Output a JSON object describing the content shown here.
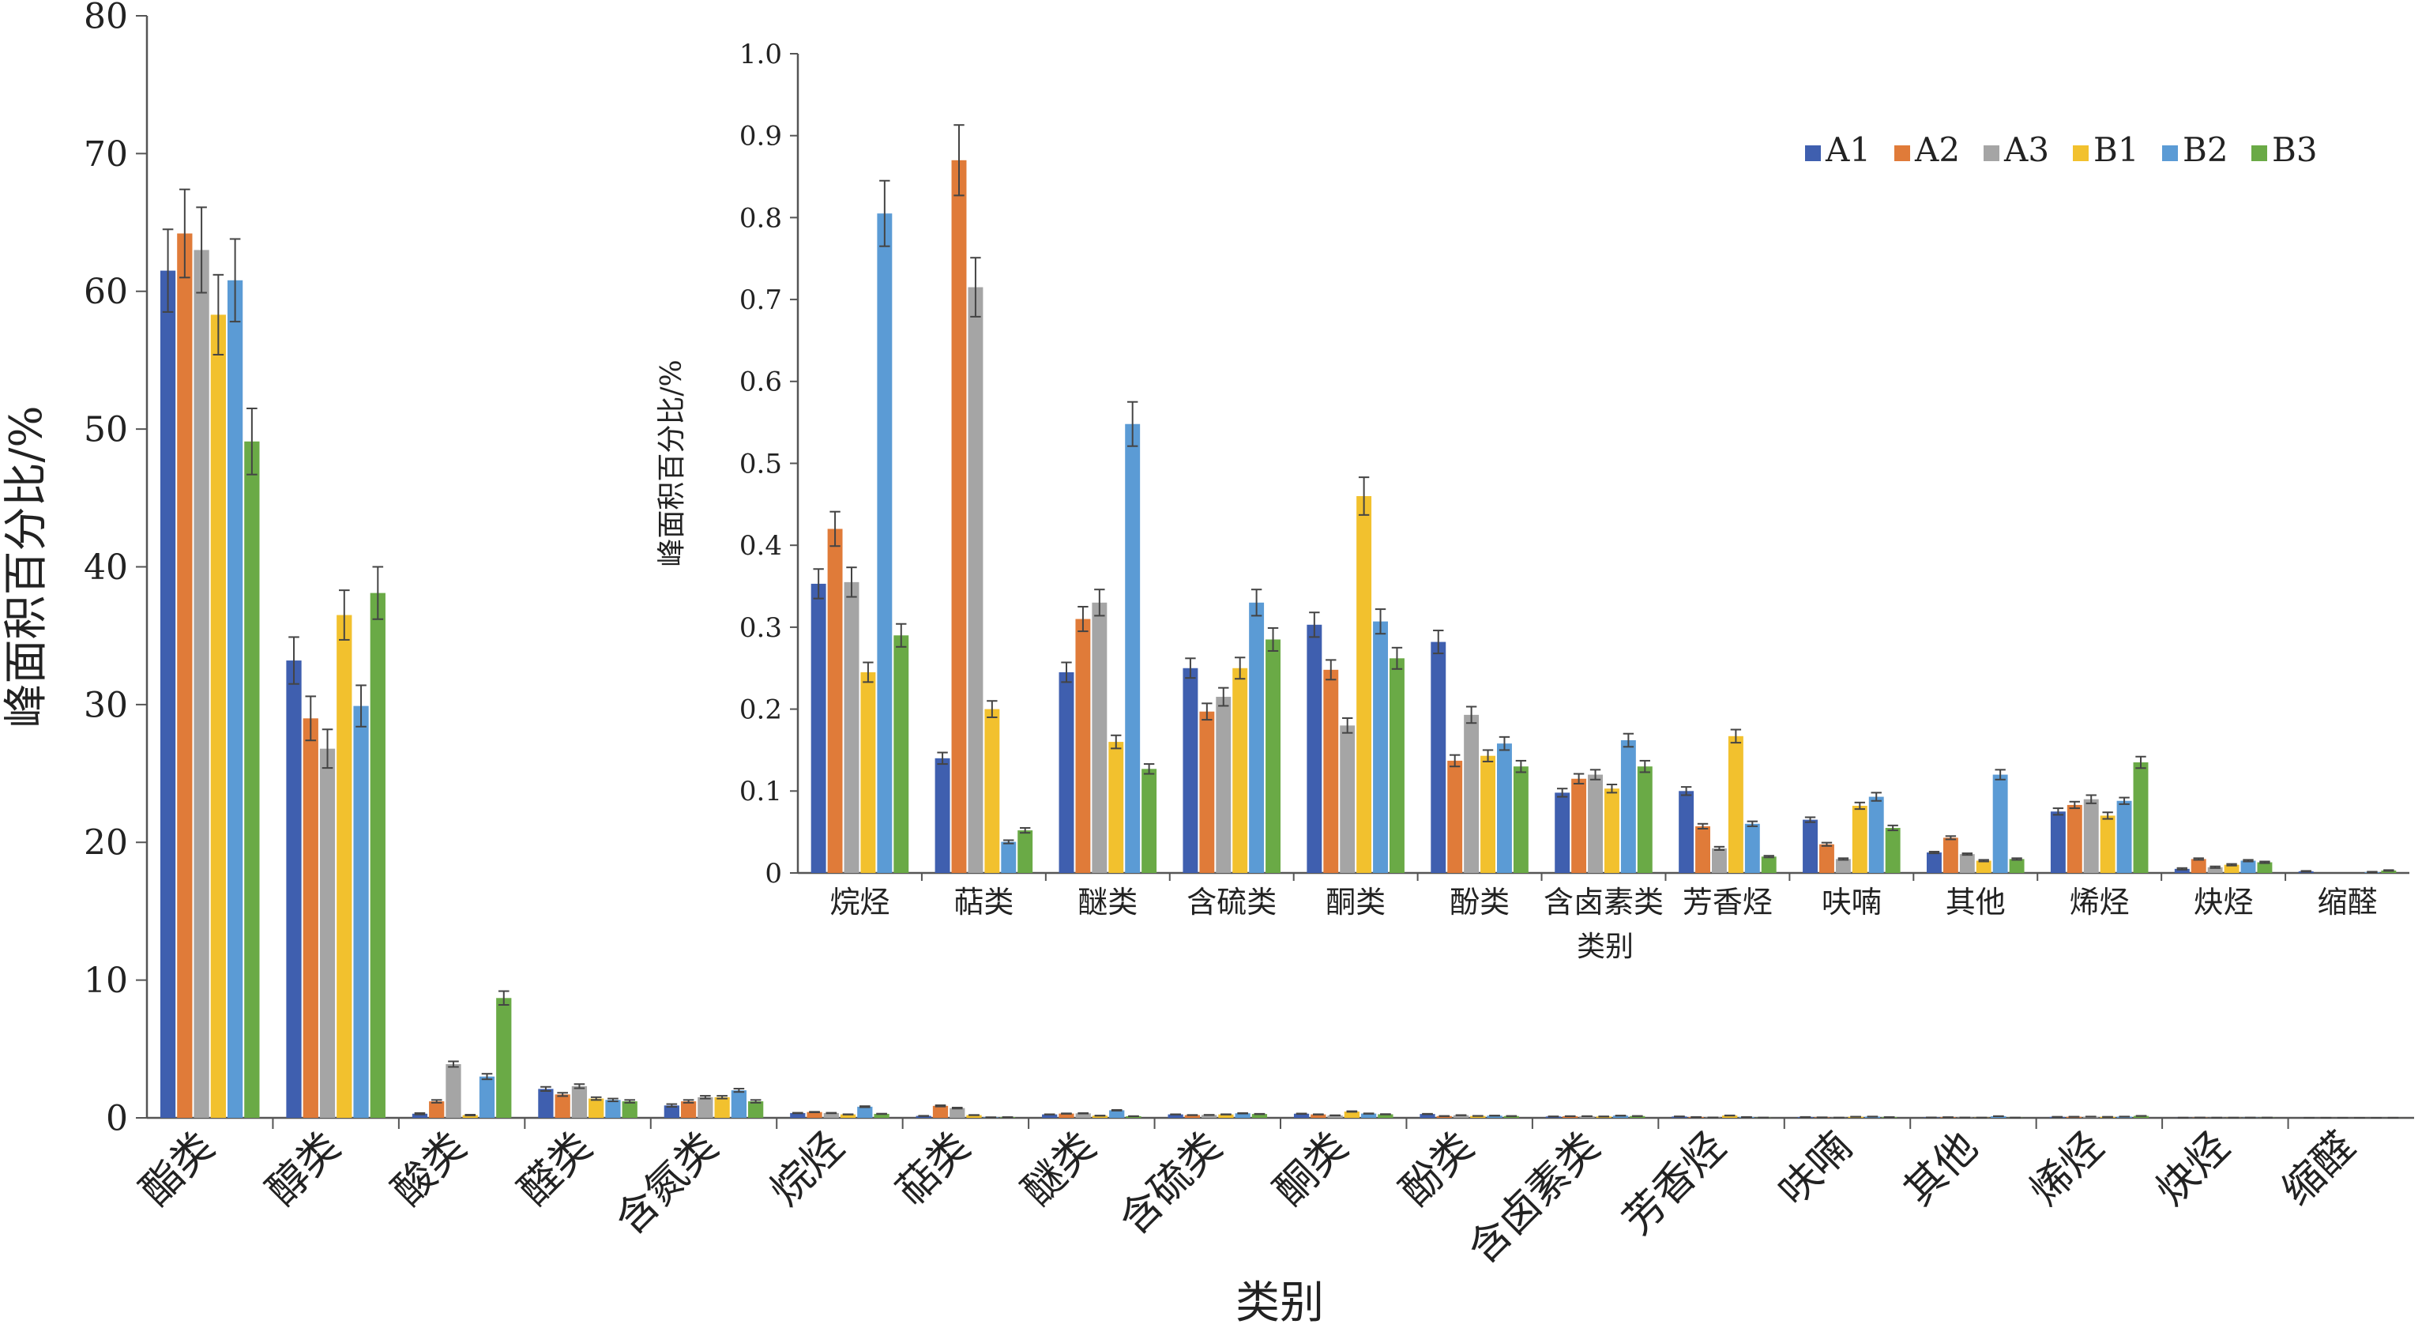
{
  "colors": {
    "A1": "#3f5faf",
    "A2": "#e07b39",
    "A3": "#a5a5a5",
    "B1": "#f2c12e",
    "B2": "#5b9bd5",
    "B3": "#6aaa46",
    "axis": "#555555",
    "error": "#444444"
  },
  "chart_data": [
    {
      "type": "bar",
      "xlabel": "类别",
      "ylabel": "峰面积百分比/%",
      "ylim": [
        0,
        80
      ],
      "yticks": [
        0,
        10,
        20,
        30,
        40,
        50,
        60,
        70,
        80
      ],
      "categories": [
        "酯类",
        "醇类",
        "酸类",
        "醛类",
        "含氮类",
        "烷烃",
        "萜类",
        "醚类",
        "含硫类",
        "酮类",
        "酚类",
        "含卤素类",
        "芳香烃",
        "呋喃",
        "其他",
        "烯烃",
        "炔烃",
        "缩醛"
      ],
      "series": [
        {
          "name": "A1",
          "values": [
            61.5,
            33.2,
            0.3,
            2.1,
            0.9,
            0.35,
            0.14,
            0.25,
            0.25,
            0.3,
            0.28,
            0.1,
            0.1,
            0.06,
            0.03,
            0.07,
            0.01,
            0.002
          ],
          "errors": [
            3.0,
            1.7,
            0.05,
            0.15,
            0.1,
            0.02,
            0.01,
            0.01,
            0.01,
            0.015,
            0.015,
            0.005,
            0.005,
            0.004,
            0.002,
            0.004,
            0.001,
            0.0005
          ]
        },
        {
          "name": "A2",
          "values": [
            64.2,
            29.0,
            1.2,
            1.7,
            1.2,
            0.42,
            0.87,
            0.31,
            0.2,
            0.25,
            0.13,
            0.12,
            0.06,
            0.035,
            0.045,
            0.08,
            0.02,
            0.003
          ],
          "errors": [
            3.2,
            1.6,
            0.1,
            0.12,
            0.1,
            0.02,
            0.045,
            0.015,
            0.01,
            0.012,
            0.008,
            0.006,
            0.003,
            0.002,
            0.002,
            0.004,
            0.001,
            0.0005
          ]
        },
        {
          "name": "A3",
          "values": [
            63.0,
            26.8,
            3.9,
            2.3,
            1.5,
            0.35,
            0.71,
            0.33,
            0.21,
            0.18,
            0.19,
            0.12,
            0.03,
            0.015,
            0.025,
            0.09,
            0.01,
            0.002
          ],
          "errors": [
            3.1,
            1.4,
            0.2,
            0.15,
            0.1,
            0.018,
            0.035,
            0.017,
            0.01,
            0.009,
            0.01,
            0.006,
            0.002,
            0.001,
            0.002,
            0.004,
            0.001,
            0.0005
          ]
        },
        {
          "name": "B1",
          "values": [
            58.3,
            36.5,
            0.2,
            1.4,
            1.5,
            0.25,
            0.2,
            0.16,
            0.25,
            0.46,
            0.14,
            0.1,
            0.17,
            0.08,
            0.015,
            0.07,
            0.01,
            0.001
          ],
          "errors": [
            2.9,
            1.8,
            0.03,
            0.1,
            0.1,
            0.012,
            0.01,
            0.008,
            0.012,
            0.023,
            0.007,
            0.005,
            0.008,
            0.004,
            0.001,
            0.003,
            0.001,
            0.0005
          ]
        },
        {
          "name": "B2",
          "values": [
            60.8,
            29.9,
            3.0,
            1.3,
            2.0,
            0.81,
            0.04,
            0.55,
            0.33,
            0.31,
            0.16,
            0.16,
            0.06,
            0.09,
            0.12,
            0.09,
            0.015,
            0.001
          ],
          "errors": [
            3.0,
            1.5,
            0.2,
            0.1,
            0.12,
            0.04,
            0.002,
            0.027,
            0.016,
            0.015,
            0.008,
            0.008,
            0.003,
            0.005,
            0.006,
            0.004,
            0.001,
            0.0005
          ]
        },
        {
          "name": "B3",
          "values": [
            49.1,
            38.1,
            8.7,
            1.2,
            1.2,
            0.29,
            0.05,
            0.12,
            0.28,
            0.26,
            0.13,
            0.13,
            0.02,
            0.055,
            0.015,
            0.14,
            0.015,
            0.004
          ],
          "errors": [
            2.4,
            1.9,
            0.5,
            0.1,
            0.1,
            0.015,
            0.003,
            0.006,
            0.014,
            0.013,
            0.006,
            0.006,
            0.001,
            0.003,
            0.001,
            0.007,
            0.001,
            0.0005
          ]
        }
      ]
    },
    {
      "type": "bar",
      "xlabel": "类别",
      "ylabel": "峰面积百分比/%",
      "ylim": [
        0,
        1.0
      ],
      "yticks": [
        "0",
        "0.1",
        "0.2",
        "0.3",
        "0.4",
        "0.5",
        "0.6",
        "0.7",
        "0.8",
        "0.9",
        "1.0"
      ],
      "legend": "top-right",
      "categories": [
        "烷烃",
        "萜类",
        "醚类",
        "含硫类",
        "酮类",
        "酚类",
        "含卤素类",
        "芳香烃",
        "呋喃",
        "其他",
        "烯烃",
        "炔烃",
        "缩醛"
      ],
      "series": [
        {
          "name": "A1",
          "values": [
            0.353,
            0.14,
            0.245,
            0.25,
            0.303,
            0.282,
            0.098,
            0.1,
            0.065,
            0.025,
            0.075,
            0.005,
            0.002
          ],
          "errors": [
            0.018,
            0.007,
            0.012,
            0.012,
            0.015,
            0.014,
            0.005,
            0.005,
            0.003,
            0.001,
            0.004,
            0.001,
            0.0005
          ]
        },
        {
          "name": "A2",
          "values": [
            0.42,
            0.87,
            0.31,
            0.197,
            0.248,
            0.137,
            0.115,
            0.057,
            0.035,
            0.043,
            0.083,
            0.017,
            0.0
          ],
          "errors": [
            0.021,
            0.043,
            0.015,
            0.01,
            0.012,
            0.007,
            0.006,
            0.003,
            0.002,
            0.002,
            0.004,
            0.001,
            0.0
          ]
        },
        {
          "name": "A3",
          "values": [
            0.355,
            0.715,
            0.33,
            0.215,
            0.18,
            0.193,
            0.12,
            0.03,
            0.017,
            0.023,
            0.09,
            0.007,
            0.0
          ],
          "errors": [
            0.018,
            0.036,
            0.016,
            0.011,
            0.009,
            0.01,
            0.006,
            0.002,
            0.001,
            0.001,
            0.005,
            0.001,
            0.0
          ]
        },
        {
          "name": "B1",
          "values": [
            0.245,
            0.2,
            0.16,
            0.25,
            0.46,
            0.143,
            0.103,
            0.167,
            0.082,
            0.015,
            0.07,
            0.01,
            0.0
          ],
          "errors": [
            0.012,
            0.01,
            0.008,
            0.013,
            0.023,
            0.007,
            0.005,
            0.008,
            0.004,
            0.001,
            0.004,
            0.001,
            0.0
          ]
        },
        {
          "name": "B2",
          "values": [
            0.805,
            0.038,
            0.548,
            0.33,
            0.307,
            0.158,
            0.162,
            0.06,
            0.093,
            0.12,
            0.088,
            0.015,
            0.001
          ],
          "errors": [
            0.04,
            0.002,
            0.027,
            0.016,
            0.015,
            0.008,
            0.008,
            0.003,
            0.005,
            0.006,
            0.004,
            0.001,
            0.0005
          ]
        },
        {
          "name": "B3",
          "values": [
            0.29,
            0.052,
            0.127,
            0.285,
            0.262,
            0.13,
            0.13,
            0.02,
            0.055,
            0.017,
            0.135,
            0.013,
            0.003
          ],
          "errors": [
            0.014,
            0.003,
            0.006,
            0.014,
            0.013,
            0.007,
            0.007,
            0.001,
            0.003,
            0.001,
            0.007,
            0.001,
            0.0005
          ]
        }
      ]
    }
  ]
}
